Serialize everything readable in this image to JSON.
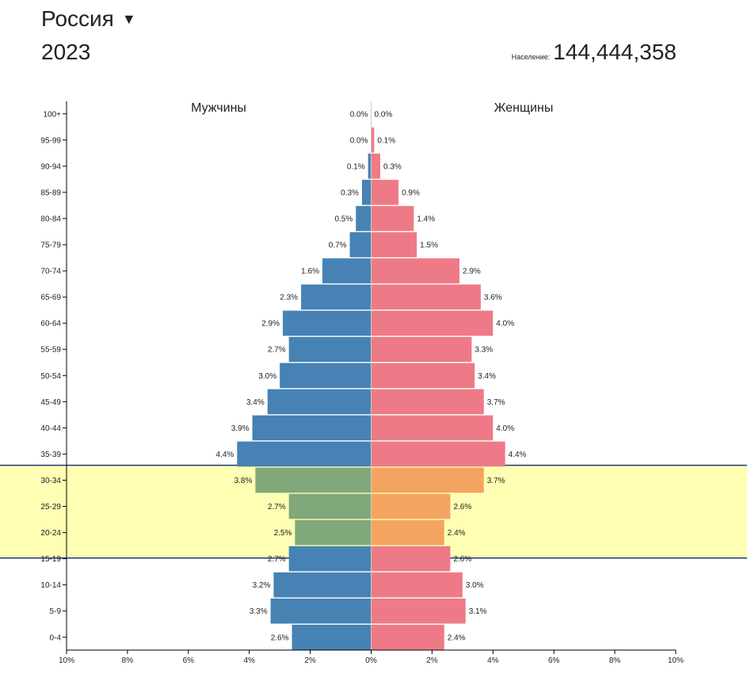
{
  "header": {
    "country": "Россия",
    "year": "2023",
    "population_label": "Население:",
    "population_value": "144,444,358"
  },
  "chart_data": {
    "type": "bar",
    "orientation": "horizontal-pyramid",
    "title": "",
    "xlabel": "",
    "ylabel": "",
    "xlim": [
      -10,
      10
    ],
    "x_ticks": [
      "10%",
      "8%",
      "6%",
      "4%",
      "2%",
      "0%",
      "2%",
      "4%",
      "6%",
      "8%",
      "10%"
    ],
    "categories": [
      "0-4",
      "5-9",
      "10-14",
      "15-19",
      "20-24",
      "25-29",
      "30-34",
      "35-39",
      "40-44",
      "45-49",
      "50-54",
      "55-59",
      "60-64",
      "65-69",
      "70-74",
      "75-79",
      "80-84",
      "85-89",
      "90-94",
      "95-99",
      "100+"
    ],
    "series": [
      {
        "name": "Мужчины",
        "color": "#4682b4",
        "highlight_color": "#80a87a",
        "values": [
          2.6,
          3.3,
          3.2,
          2.7,
          2.5,
          2.7,
          3.8,
          4.4,
          3.9,
          3.4,
          3.0,
          2.7,
          2.9,
          2.3,
          1.6,
          0.7,
          0.5,
          0.3,
          0.1,
          0.0,
          0.0
        ],
        "labels": [
          "2.6%",
          "3.3%",
          "3.2%",
          "2.7%",
          "2.5%",
          "2.7%",
          "3.8%",
          "4.4%",
          "3.9%",
          "3.4%",
          "3.0%",
          "2.7%",
          "2.9%",
          "2.3%",
          "1.6%",
          "0.7%",
          "0.5%",
          "0.3%",
          "0.1%",
          "0.0%",
          "0.0%"
        ]
      },
      {
        "name": "Женщины",
        "color": "#ef7a87",
        "highlight_color": "#f4a460",
        "values": [
          2.4,
          3.1,
          3.0,
          2.6,
          2.4,
          2.6,
          3.7,
          4.4,
          4.0,
          3.7,
          3.4,
          3.3,
          4.0,
          3.6,
          2.9,
          1.5,
          1.4,
          0.9,
          0.3,
          0.1,
          0.0
        ],
        "labels": [
          "2.4%",
          "3.1%",
          "3.0%",
          "2.6%",
          "2.4%",
          "2.6%",
          "3.7%",
          "4.4%",
          "4.0%",
          "3.7%",
          "3.4%",
          "3.3%",
          "4.0%",
          "3.6%",
          "2.9%",
          "1.5%",
          "1.4%",
          "0.9%",
          "0.3%",
          "0.1%",
          "0.0%"
        ]
      }
    ],
    "highlight": {
      "categories": [
        "20-24",
        "25-29",
        "30-34"
      ],
      "band_color": "#ffffb3",
      "border_color": "#1f3a7a"
    },
    "grid": false,
    "legend": "top (series names above each side)"
  }
}
